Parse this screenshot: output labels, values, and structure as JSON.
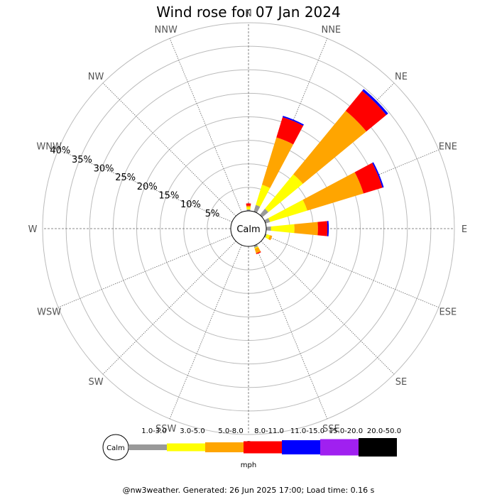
{
  "chart_data": {
    "type": "wind-rose",
    "title": "Wind rose for 07 Jan 2024",
    "directions": [
      "N",
      "NNE",
      "NE",
      "ENE",
      "E",
      "ESE",
      "SE",
      "SSE",
      "S",
      "SSW",
      "SW",
      "WSW",
      "W",
      "WNW",
      "NW",
      "NNW"
    ],
    "radial_ticks": [
      "5%",
      "10%",
      "15%",
      "20%",
      "25%",
      "30%",
      "35%",
      "40%"
    ],
    "radial_max": 40,
    "calm_label": "Calm",
    "unit": "mph",
    "speed_bins": [
      {
        "label": "1.0-3.0",
        "color": "#999999"
      },
      {
        "label": "3.0-5.0",
        "color": "#ffff00"
      },
      {
        "label": "5.0-8.0",
        "color": "#ffa500"
      },
      {
        "label": "8.0-11.0",
        "color": "#ff0000"
      },
      {
        "label": "11.0-15.0",
        "color": "#0000ff"
      },
      {
        "label": "15.0-20.0",
        "color": "#a020f0"
      },
      {
        "label": "20.0-50.0",
        "color": "#000000"
      }
    ],
    "series": [
      {
        "direction": "N",
        "values": [
          0.3,
          0.5,
          0.3,
          0.5,
          0,
          0,
          0
        ]
      },
      {
        "direction": "NNE",
        "values": [
          1.5,
          4.5,
          10.5,
          4.5,
          0.3,
          0,
          0
        ]
      },
      {
        "direction": "NE",
        "values": [
          1.7,
          9.5,
          17.5,
          5.5,
          0.5,
          0,
          0
        ]
      },
      {
        "direction": "ENE",
        "values": [
          1.0,
          8.3,
          12.5,
          4.2,
          0.3,
          0,
          0
        ]
      },
      {
        "direction": "E",
        "values": [
          1.0,
          5.0,
          5.0,
          2.0,
          0.3,
          0,
          0
        ]
      },
      {
        "direction": "ESE",
        "values": [
          0.3,
          0.7,
          0.5,
          0,
          0,
          0,
          0
        ]
      },
      {
        "direction": "SE",
        "values": [
          0,
          0,
          0,
          0,
          0,
          0,
          0
        ]
      },
      {
        "direction": "SSE",
        "values": [
          0.5,
          0.2,
          1.0,
          0.2,
          0,
          0,
          0
        ]
      },
      {
        "direction": "S",
        "values": [
          0,
          0,
          0,
          0,
          0,
          0,
          0
        ]
      },
      {
        "direction": "SSW",
        "values": [
          0,
          0,
          0,
          0,
          0,
          0,
          0
        ]
      },
      {
        "direction": "SW",
        "values": [
          0,
          0,
          0,
          0,
          0,
          0,
          0
        ]
      },
      {
        "direction": "WSW",
        "values": [
          0,
          0,
          0,
          0,
          0,
          0,
          0
        ]
      },
      {
        "direction": "W",
        "values": [
          0,
          0,
          0,
          0,
          0,
          0,
          0
        ]
      },
      {
        "direction": "WNW",
        "values": [
          0,
          0,
          0,
          0,
          0,
          0,
          0
        ]
      },
      {
        "direction": "NW",
        "values": [
          0,
          0,
          0,
          0,
          0,
          0,
          0
        ]
      },
      {
        "direction": "NNW",
        "values": [
          0,
          0,
          0,
          0,
          0,
          0,
          0
        ]
      }
    ]
  },
  "footer": "@nw3weather. Generated: 26 Jun 2025 17:00; Load time: 0.16 s"
}
